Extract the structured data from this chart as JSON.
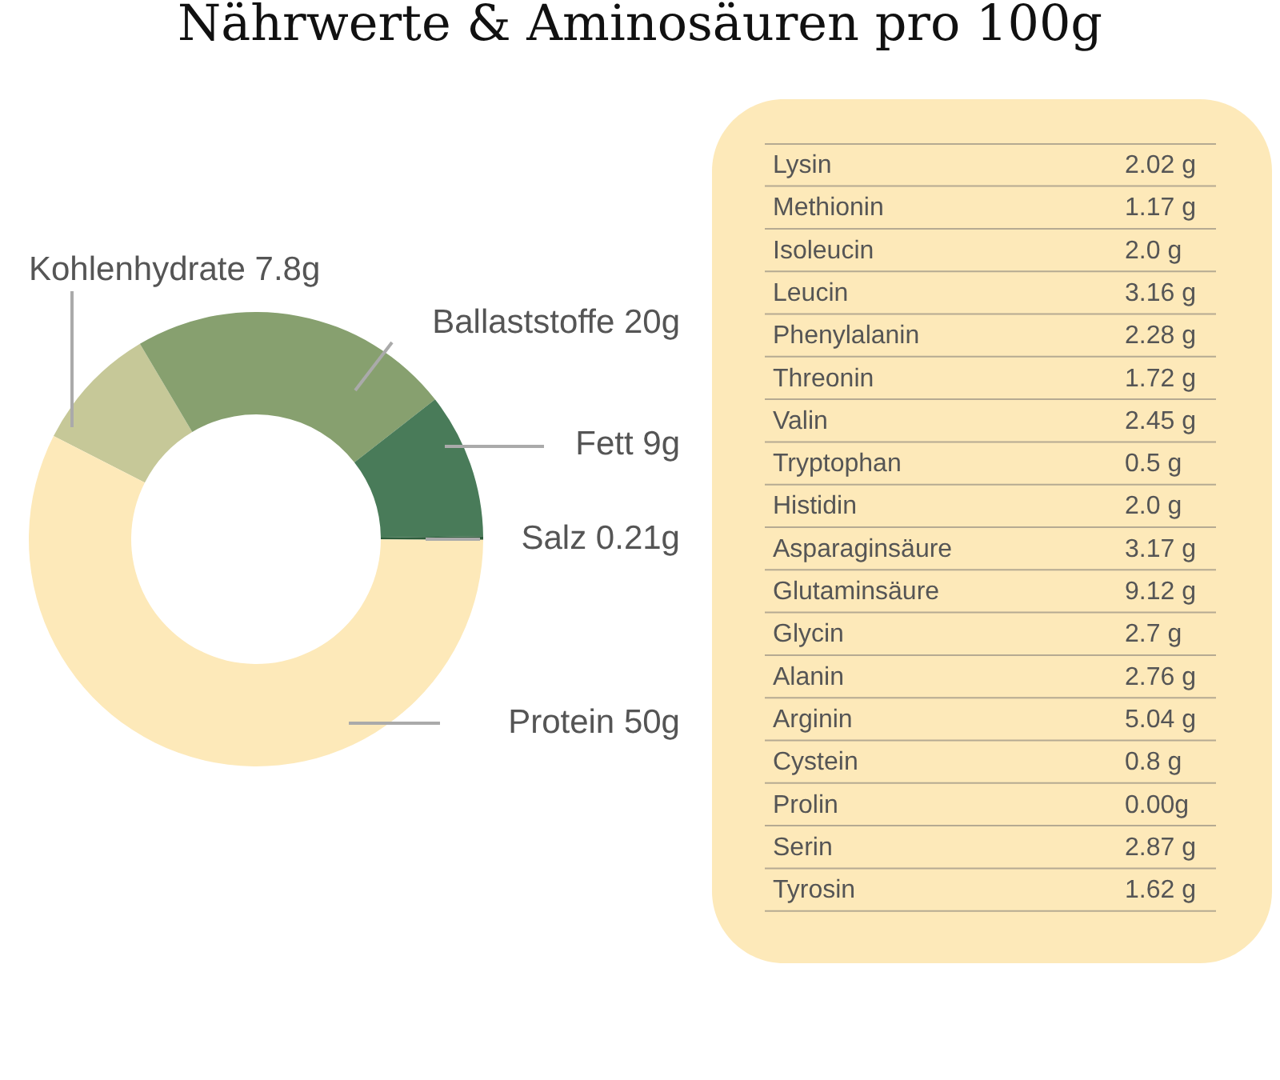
{
  "chart_data": [
    {
      "type": "donut",
      "title": "Nährwerte & Aminosäuren pro 100g",
      "categories": [
        "Kohlenhydrate",
        "Ballaststoffe",
        "Fett",
        "Salz",
        "Protein"
      ],
      "values": [
        7.8,
        20,
        9,
        0.21,
        50
      ],
      "value_labels": [
        "7.8g",
        "20g",
        "9g",
        "0.21g",
        "50g"
      ],
      "colors": [
        "#c6c898",
        "#87a06f",
        "#497b59",
        "#2d5c3b",
        "#fde9b9"
      ]
    },
    {
      "type": "other",
      "categories": [
        "Lysin",
        "Methionin",
        "Isoleucin",
        "Leucin",
        "Phenylalanin",
        "Threonin",
        "Valin",
        "Tryptophan",
        "Histidin",
        "Asparaginsäure",
        "Glutaminsäure",
        "Glycin",
        "Alanin",
        "Arginin",
        "Cystein",
        "Prolin",
        "Serin",
        "Tyrosin"
      ],
      "value_labels": [
        "2.02 g",
        "1.17 g",
        "2.0 g",
        "3.16 g",
        "2.28 g",
        "1.72 g",
        "2.45 g",
        "0.5 g",
        "2.0 g",
        "3.17 g",
        "9.12 g",
        "2.7 g",
        "2.76 g",
        "5.04 g",
        "0.8 g",
        "0.00g",
        "2.87 g",
        "1.62 g"
      ]
    }
  ]
}
